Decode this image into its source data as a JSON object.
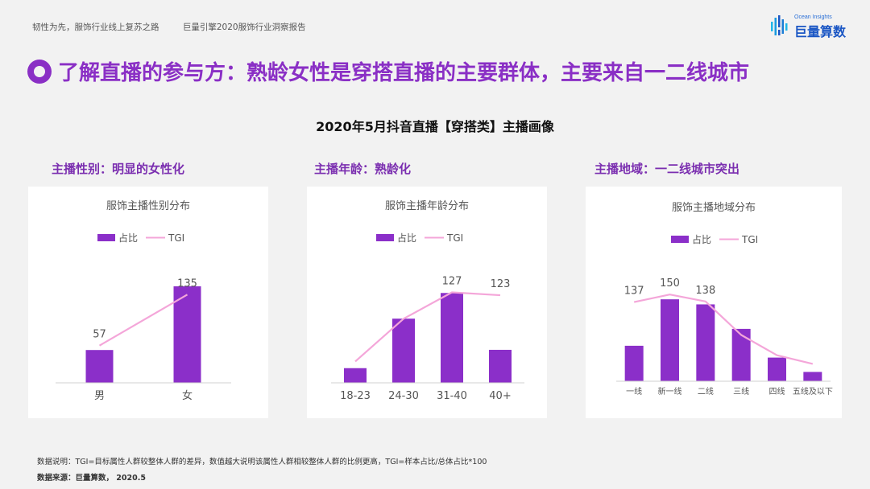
{
  "header": {
    "left_text": "韧性为先，服饰行业线上复苏之路",
    "report_text": "巨量引擎2020服饰行业洞察报告",
    "logo_sub": "Ocean Insights",
    "logo_main": "巨量算数"
  },
  "title": "了解直播的参与方：熟龄女性是穿搭直播的主要群体，主要来自一二线城市",
  "subtitle": "2020年5月抖音直播【穿搭类】主播画像",
  "sections": [
    {
      "label": "主播性别：明显的女性化"
    },
    {
      "label": "主播年龄：熟龄化"
    },
    {
      "label": "主播地域：一二线城市突出"
    }
  ],
  "chart_data": [
    {
      "type": "bar",
      "title": "服饰主播性别分布",
      "legend": [
        "占比",
        "TGI"
      ],
      "legend_position": "top",
      "categories": [
        "男",
        "女"
      ],
      "bar_values": [
        34,
        100
      ],
      "bar_ylim": [
        0,
        100
      ],
      "series": [
        {
          "name": "占比",
          "type": "bar",
          "values": [
            34,
            100
          ]
        },
        {
          "name": "TGI",
          "type": "line",
          "values": [
            57,
            135
          ]
        }
      ],
      "tgi_ylim": [
        0,
        160
      ],
      "tgi_labels": [
        "57",
        "135"
      ],
      "colors": {
        "bar": "#8b2fc9",
        "line": "#f4a6d9"
      },
      "grid": false
    },
    {
      "type": "bar",
      "title": "服饰主播年龄分布",
      "legend": [
        "占比",
        "TGI"
      ],
      "legend_position": "top",
      "categories": [
        "18-23",
        "24-30",
        "31-40",
        "40+"
      ],
      "series": [
        {
          "name": "占比",
          "type": "bar",
          "values": [
            16,
            70,
            98,
            36
          ]
        },
        {
          "name": "TGI",
          "type": "line",
          "values": [
            30,
            90,
            127,
            123
          ]
        }
      ],
      "bar_ylim": [
        0,
        100
      ],
      "tgi_ylim": [
        0,
        140
      ],
      "tgi_labels": [
        "",
        "",
        "127",
        "123"
      ],
      "colors": {
        "bar": "#8b2fc9",
        "line": "#f4a6d9"
      },
      "grid": false
    },
    {
      "type": "bar",
      "title": "服饰主播地域分布",
      "legend": [
        "占比",
        "TGI"
      ],
      "legend_position": "top",
      "categories": [
        "一线",
        "新一线",
        "二线",
        "三线",
        "四线",
        "五线及以下"
      ],
      "series": [
        {
          "name": "占比",
          "type": "bar",
          "values": [
            42,
            97,
            91,
            62,
            28,
            11
          ]
        },
        {
          "name": "TGI",
          "type": "line",
          "values": [
            137,
            150,
            138,
            80,
            45,
            30
          ]
        }
      ],
      "bar_ylim": [
        0,
        100
      ],
      "tgi_ylim": [
        0,
        160
      ],
      "tgi_labels": [
        "137",
        "150",
        "138",
        "",
        "",
        ""
      ],
      "colors": {
        "bar": "#8b2fc9",
        "line": "#f4a6d9"
      },
      "grid": false
    }
  ],
  "footer": {
    "note": "数据说明：TGI=目标属性人群较整体人群的差异，数值越大说明该属性人群相较整体人群的比例更高，TGI=样本占比/总体占比*100",
    "source": "数据来源：巨量算数， 2020.5"
  }
}
